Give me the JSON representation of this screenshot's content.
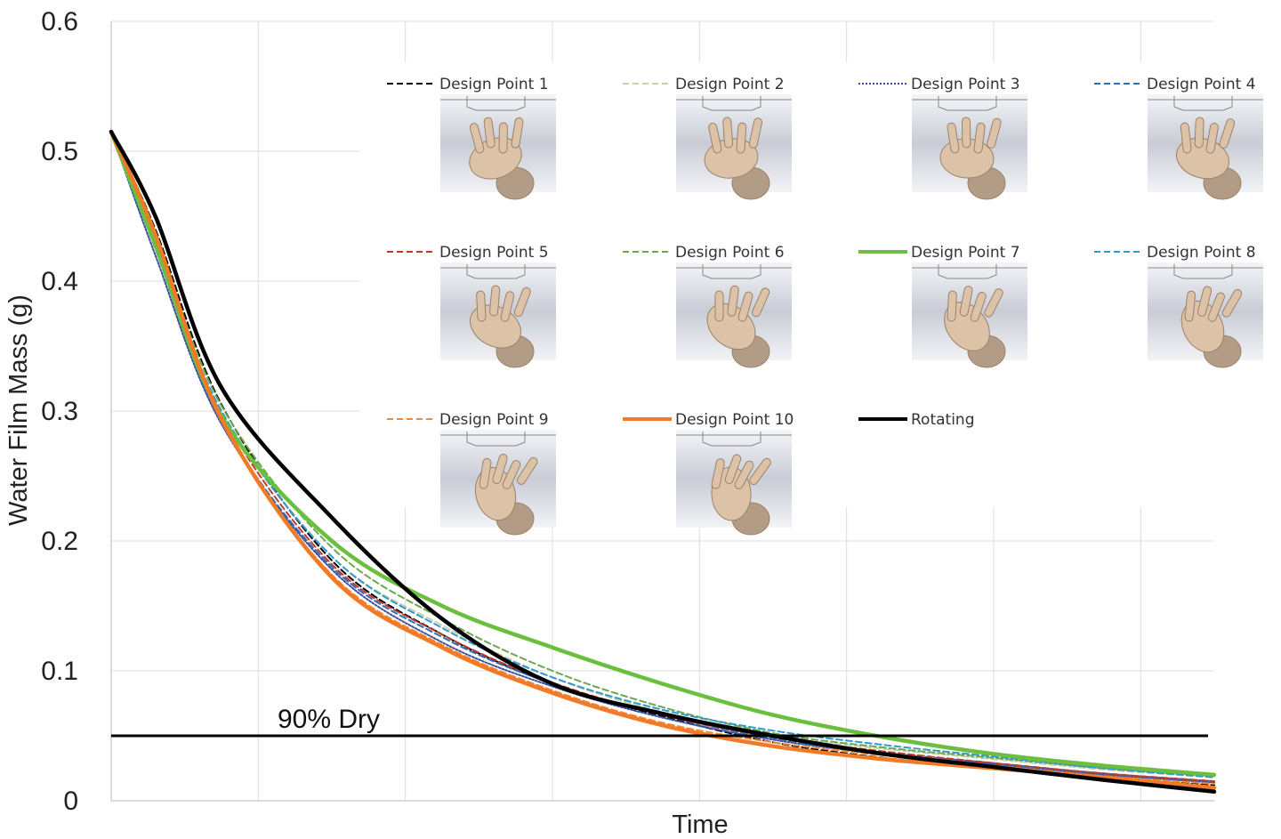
{
  "chart_data": {
    "type": "line",
    "xlabel": "Time",
    "ylabel": "Water Film Mass (g)",
    "ylim": [
      0,
      0.6
    ],
    "yticks": [
      "0",
      "0.1",
      "0.2",
      "0.3",
      "0.4",
      "0.5",
      "0.6"
    ],
    "x_tick_labels_shown": false,
    "grid": true,
    "legend_position": "inside, upper right (grid with hand-orientation thumbnails)",
    "reference_line": {
      "y": 0.05,
      "label": "90% Dry",
      "color": "#000000"
    },
    "x": [
      0,
      0.04,
      0.1,
      0.2,
      0.3,
      0.4,
      0.5,
      0.6,
      0.7,
      0.8,
      0.9,
      1.0
    ],
    "series": [
      {
        "name": "Design Point 1",
        "color": "#000000",
        "style": "dashed",
        "values": [
          0.515,
          0.44,
          0.305,
          0.185,
          0.128,
          0.09,
          0.065,
          0.045,
          0.033,
          0.025,
          0.018,
          0.012
        ]
      },
      {
        "name": "Design Point 2",
        "color": "#c5d1a8",
        "style": "dashed",
        "values": [
          0.515,
          0.43,
          0.3,
          0.188,
          0.135,
          0.095,
          0.068,
          0.05,
          0.04,
          0.032,
          0.024,
          0.018
        ]
      },
      {
        "name": "Design Point 3",
        "color": "#3a4fa0",
        "style": "dotted",
        "values": [
          0.515,
          0.42,
          0.29,
          0.178,
          0.122,
          0.088,
          0.064,
          0.047,
          0.036,
          0.028,
          0.02,
          0.014
        ]
      },
      {
        "name": "Design Point 4",
        "color": "#2e6fb8",
        "style": "dashed",
        "values": [
          0.515,
          0.425,
          0.292,
          0.18,
          0.126,
          0.09,
          0.066,
          0.048,
          0.037,
          0.029,
          0.021,
          0.015
        ]
      },
      {
        "name": "Design Point 5",
        "color": "#c0392b",
        "style": "dashed",
        "values": [
          0.515,
          0.432,
          0.298,
          0.182,
          0.128,
          0.091,
          0.066,
          0.049,
          0.038,
          0.029,
          0.021,
          0.015
        ]
      },
      {
        "name": "Design Point 6",
        "color": "#6aa84f",
        "style": "dashed",
        "values": [
          0.515,
          0.435,
          0.304,
          0.195,
          0.14,
          0.1,
          0.072,
          0.052,
          0.041,
          0.033,
          0.025,
          0.019
        ]
      },
      {
        "name": "Design Point 7",
        "color": "#6bbf3f",
        "style": "solid",
        "values": [
          0.515,
          0.428,
          0.296,
          0.2,
          0.15,
          0.118,
          0.09,
          0.066,
          0.049,
          0.036,
          0.027,
          0.02
        ]
      },
      {
        "name": "Design Point 8",
        "color": "#3399cc",
        "style": "dashed",
        "values": [
          0.515,
          0.43,
          0.3,
          0.188,
          0.133,
          0.095,
          0.07,
          0.054,
          0.043,
          0.034,
          0.025,
          0.018
        ]
      },
      {
        "name": "Design Point 9",
        "color": "#f08a3c",
        "style": "dashed",
        "values": [
          0.515,
          0.432,
          0.292,
          0.174,
          0.12,
          0.085,
          0.06,
          0.045,
          0.035,
          0.027,
          0.019,
          0.013
        ]
      },
      {
        "name": "Design Point 10",
        "color": "#f07a26",
        "style": "solid",
        "values": [
          0.515,
          0.436,
          0.294,
          0.172,
          0.118,
          0.083,
          0.058,
          0.042,
          0.032,
          0.025,
          0.018,
          0.01
        ]
      },
      {
        "name": "Rotating",
        "color": "#000000",
        "style": "solid",
        "values": [
          0.515,
          0.45,
          0.318,
          0.218,
          0.14,
          0.09,
          0.067,
          0.05,
          0.036,
          0.026,
          0.016,
          0.007
        ]
      }
    ]
  }
}
